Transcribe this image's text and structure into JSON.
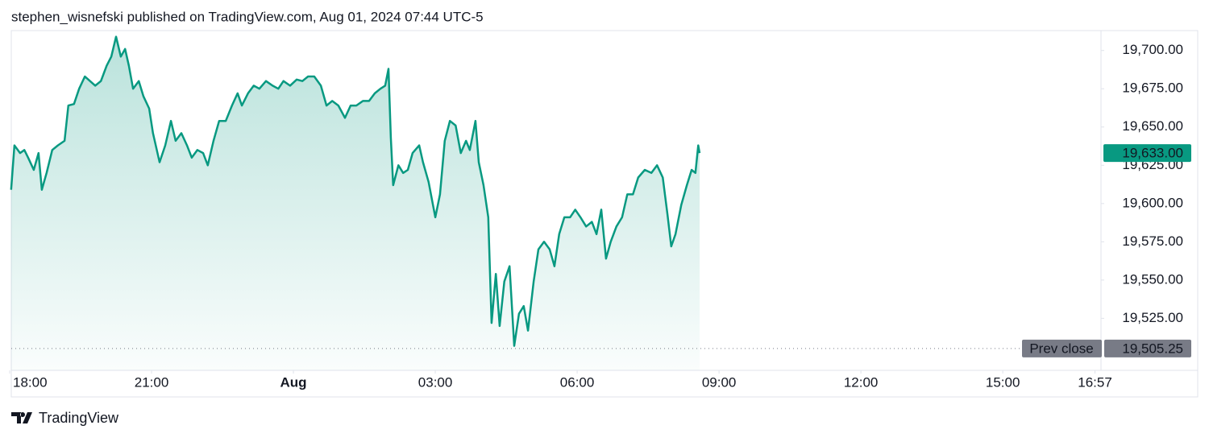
{
  "chart_data": {
    "type": "line",
    "title": "stephen_wisnefski published on TradingView.com, Aug 01, 2024 07:44 UTC-5",
    "brand": "TradingView",
    "color": "#089981",
    "x": [
      0.03,
      0.1,
      0.22,
      0.31,
      0.39,
      0.51,
      0.61,
      0.68,
      0.78,
      0.9,
      1.02,
      1.16,
      1.24,
      1.36,
      1.47,
      1.59,
      1.7,
      1.81,
      1.93,
      2.05,
      2.15,
      2.25,
      2.35,
      2.44,
      2.52,
      2.61,
      2.73,
      2.83,
      2.95,
      3.03,
      3.17,
      3.29,
      3.41,
      3.51,
      3.63,
      3.75,
      3.85,
      3.97,
      4.09,
      4.19,
      4.31,
      4.43,
      4.57,
      4.7,
      4.82,
      4.91,
      5.04,
      5.16,
      5.28,
      5.42,
      5.56,
      5.68,
      5.79,
      5.93,
      6.07,
      6.19,
      6.31,
      6.44,
      6.58,
      6.7,
      6.82,
      6.95,
      7.09,
      7.21,
      7.33,
      7.47,
      7.6,
      7.72,
      7.84,
      7.94,
      8.01,
      8.06,
      8.11,
      8.22,
      8.32,
      8.42,
      8.52,
      8.66,
      8.74,
      8.86,
      9.0,
      9.1,
      9.2,
      9.31,
      9.43,
      9.54,
      9.65,
      9.73,
      9.85,
      9.92,
      10.02,
      10.12,
      10.19,
      10.28,
      10.36,
      10.46,
      10.57,
      10.67,
      10.77,
      10.87,
      10.96,
      11.08,
      11.18,
      11.3,
      11.42,
      11.52,
      11.62,
      11.73,
      11.85,
      11.96,
      12.07,
      12.19,
      12.31,
      12.41,
      12.51,
      12.61,
      12.71,
      12.83,
      12.95,
      13.06,
      13.18,
      13.29,
      13.43,
      13.57,
      13.69,
      13.81,
      13.91,
      13.99,
      14.08,
      14.2,
      14.32,
      14.42,
      14.5,
      14.56,
      14.59
    ],
    "values": [
      19609,
      19638,
      19633,
      19635,
      19630,
      19622,
      19633,
      19609,
      19620,
      19635,
      19638,
      19641,
      19664,
      19665,
      19675,
      19683,
      19680,
      19677,
      19680,
      19690,
      19696,
      19709,
      19696,
      19701,
      19690,
      19675,
      19680,
      19670,
      19662,
      19646,
      19627,
      19638,
      19654,
      19641,
      19646,
      19638,
      19630,
      19635,
      19633,
      19625,
      19641,
      19654,
      19654,
      19664,
      19672,
      19664,
      19672,
      19677,
      19675,
      19680,
      19677,
      19675,
      19680,
      19677,
      19681,
      19680,
      19683,
      19683,
      19677,
      19664,
      19667,
      19664,
      19656,
      19664,
      19664,
      19667,
      19667,
      19672,
      19675,
      19677,
      19688,
      19643,
      19612,
      19625,
      19620,
      19622,
      19633,
      19638,
      19627,
      19614,
      19591,
      19606,
      19641,
      19654,
      19651,
      19633,
      19641,
      19635,
      19654,
      19627,
      19612,
      19591,
      19522,
      19554,
      19520,
      19549,
      19559,
      19507,
      19528,
      19533,
      19517,
      19549,
      19570,
      19575,
      19570,
      19559,
      19580,
      19591,
      19591,
      19596,
      19591,
      19585,
      19588,
      19580,
      19596,
      19564,
      19575,
      19585,
      19591,
      19606,
      19606,
      19617,
      19622,
      19620,
      19625,
      19617,
      19593,
      19572,
      19580,
      19599,
      19612,
      19622,
      19620,
      19638,
      19633
    ],
    "xlim": [
      0,
      23.06
    ],
    "ylim": [
      19491,
      19713
    ],
    "xticks": [
      {
        "value": 0,
        "label": "18:00"
      },
      {
        "value": 3,
        "label": "21:00"
      },
      {
        "value": 6,
        "label": "Aug"
      },
      {
        "value": 9,
        "label": "03:00"
      },
      {
        "value": 12,
        "label": "06:00"
      },
      {
        "value": 15,
        "label": "09:00"
      },
      {
        "value": 18,
        "label": "12:00"
      },
      {
        "value": 21,
        "label": "15:00"
      },
      {
        "value": 22.95,
        "label": "16:57"
      }
    ],
    "yticks": [
      {
        "value": 19525,
        "label": "19,525.00"
      },
      {
        "value": 19550,
        "label": "19,550.00"
      },
      {
        "value": 19575,
        "label": "19,575.00"
      },
      {
        "value": 19600,
        "label": "19,600.00"
      },
      {
        "value": 19625,
        "label": "19,625.00"
      },
      {
        "value": 19650,
        "label": "19,650.00"
      },
      {
        "value": 19675,
        "label": "19,675.00"
      },
      {
        "value": 19700,
        "label": "19,700.00"
      }
    ],
    "last_price": {
      "value": 19633,
      "label": "19,633.00"
    },
    "prev_close": {
      "name": "Prev close",
      "value": 19505.25,
      "label": "19,505.25"
    }
  }
}
